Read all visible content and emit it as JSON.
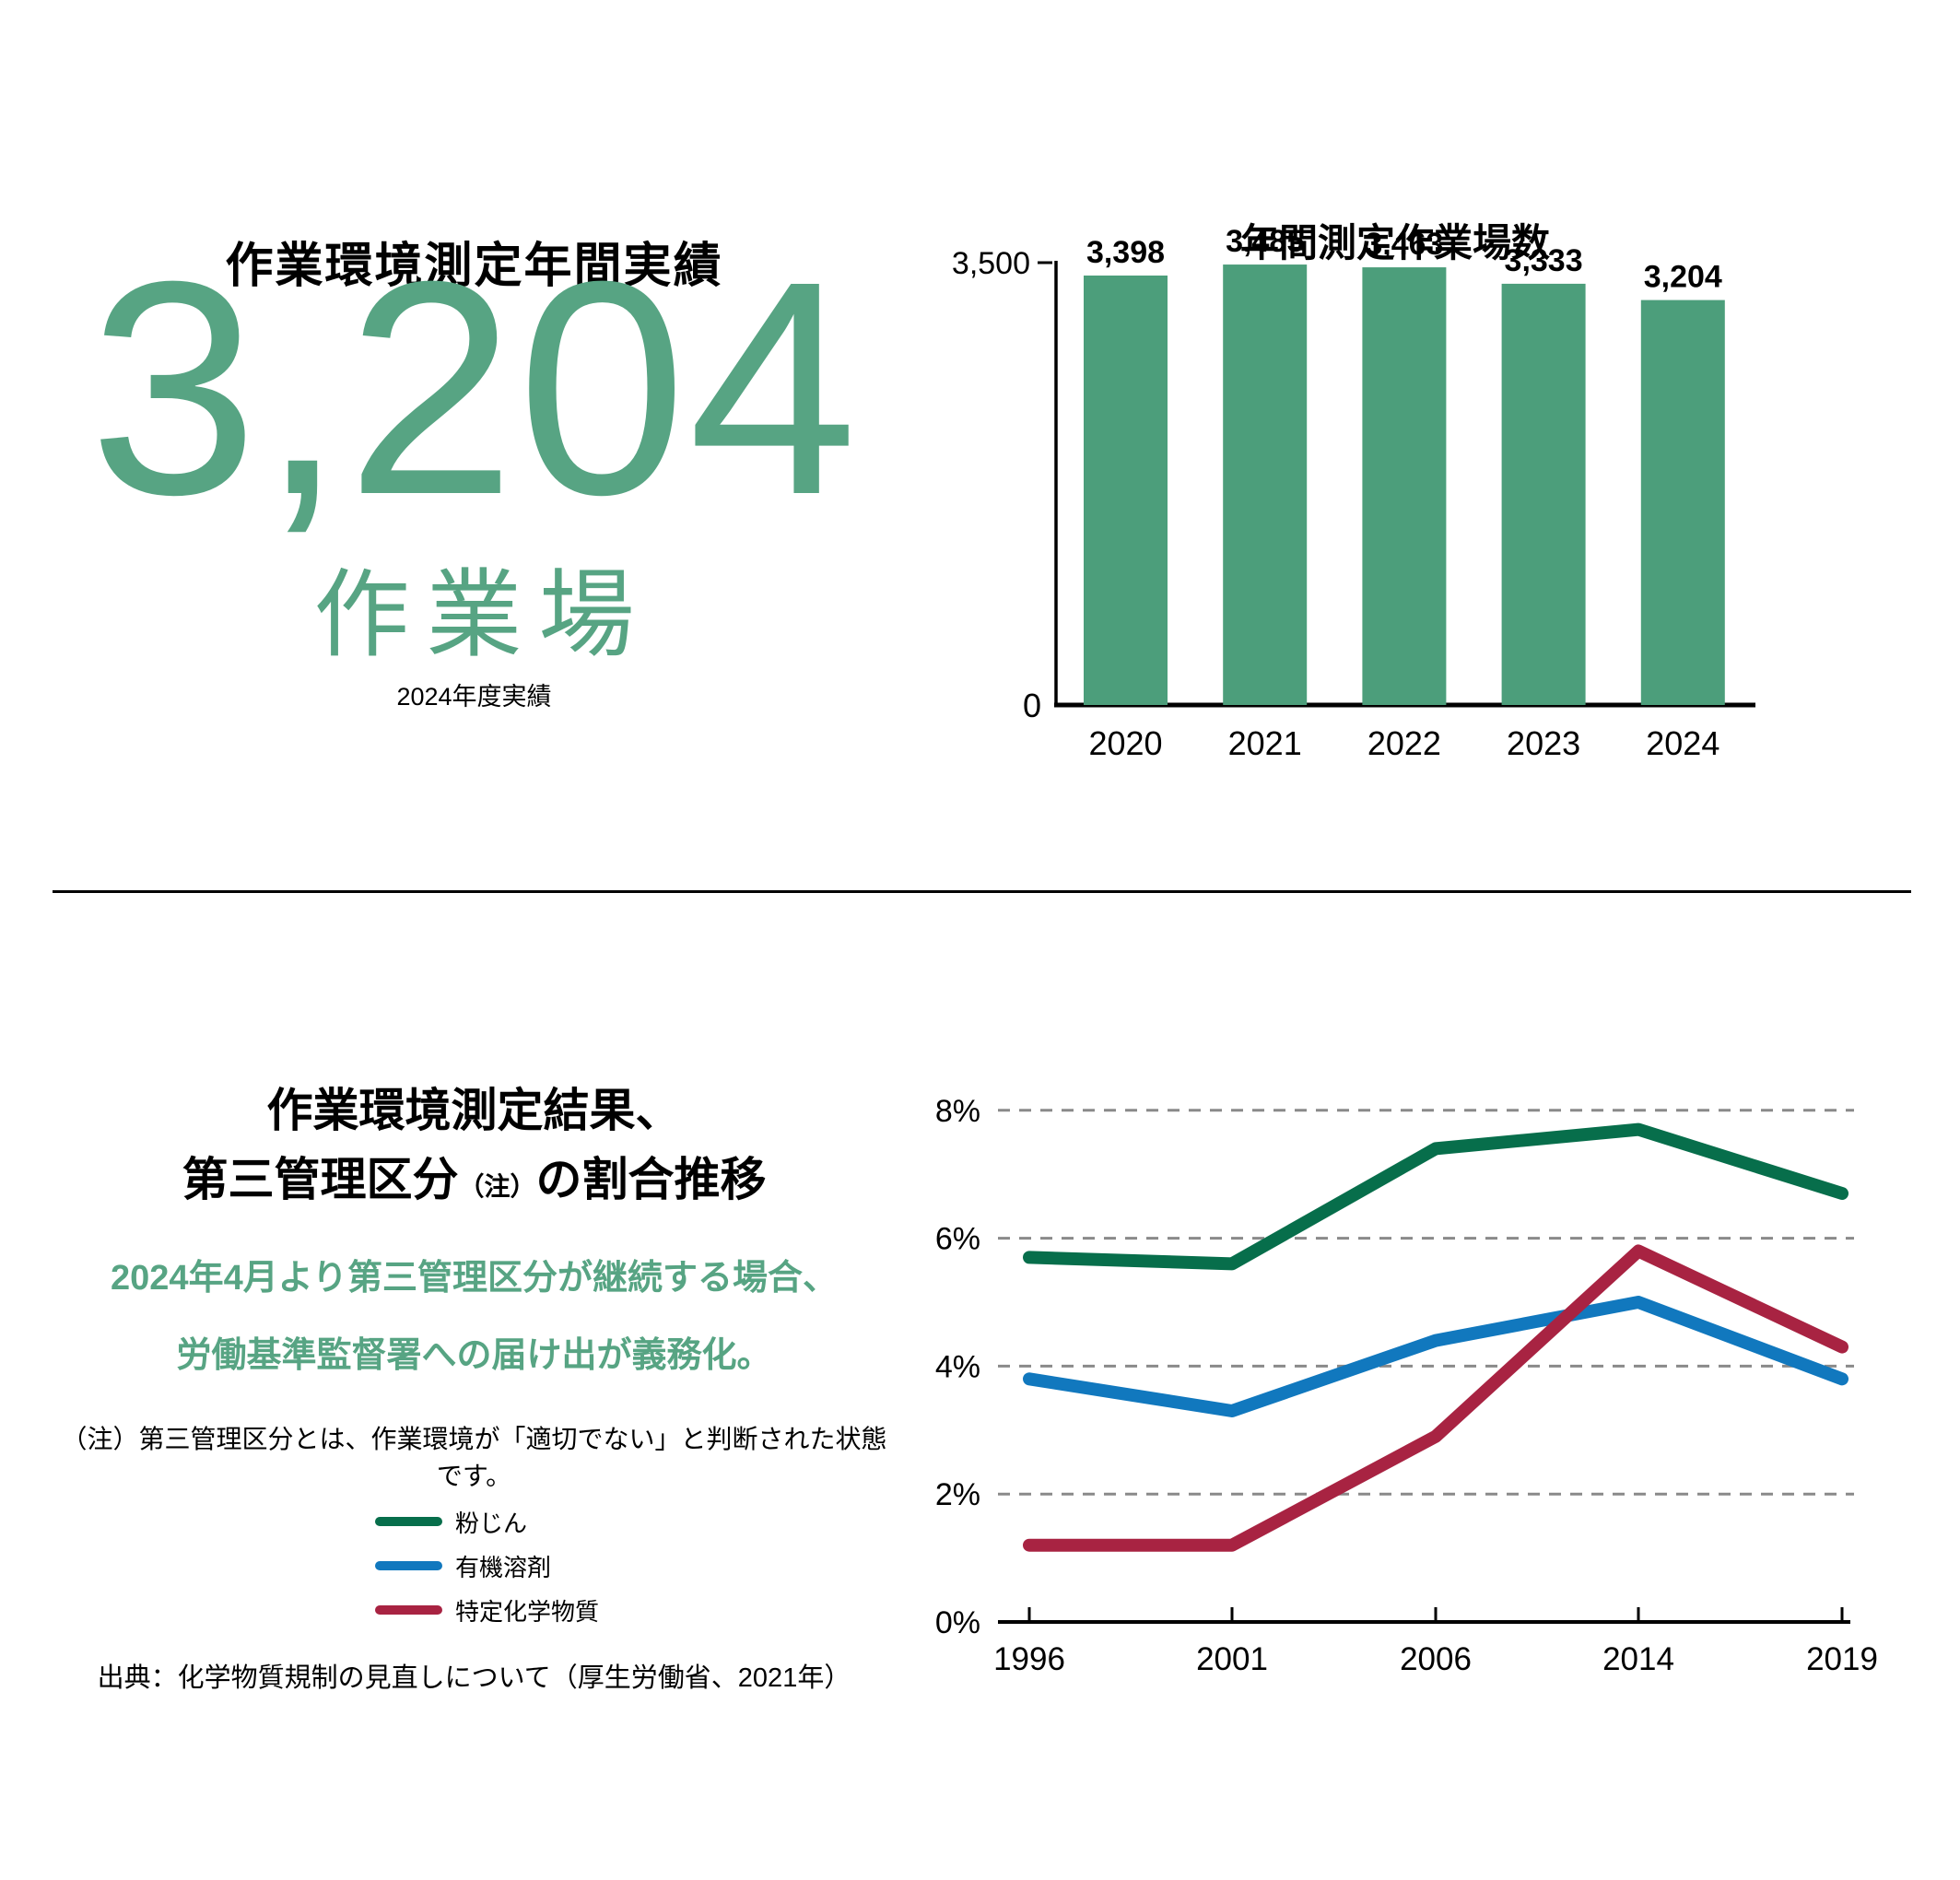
{
  "top_section": {
    "heading": "作業環境測定年間実績",
    "metric": {
      "value": "3,204",
      "unit": "作業場",
      "caption": "2024年度実績",
      "color": "#57A483"
    }
  },
  "bottom_section": {
    "title_line1": "作業環境測定結果、",
    "title_line2_before_note": "第三管理区分",
    "title_note_inline": "（注）",
    "title_line2_after_note": "の割合推移",
    "subtitle_line1": "2024年4月より第三管理区分が継続する場合、",
    "subtitle_line2": "労働基準監督署への届け出が義務化。",
    "subtitle_color": "#57A483",
    "note": "（注）第三管理区分とは、作業環境が「適切でない」と判断された状態です。",
    "source": "出典：化学物質規制の見直しについて（厚生労働省、2021年）"
  },
  "chart_data": [
    {
      "id": "annual-workplaces-bar",
      "type": "bar",
      "title": "年間測定作業場数",
      "categories": [
        "2020",
        "2021",
        "2022",
        "2023",
        "2024"
      ],
      "values": [
        3398,
        3485,
        3463,
        3333,
        3204
      ],
      "value_labels": [
        "3,398",
        "3,485",
        "3,463",
        "3,333",
        "3,204"
      ],
      "ylim": [
        0,
        3500
      ],
      "yticks": [
        {
          "value": 3500,
          "label": "3,500"
        },
        {
          "value": 0,
          "label": "0"
        }
      ],
      "xlabel": "",
      "ylabel": "",
      "grid": false,
      "legend": "none",
      "bar_color": "#4C9E7B",
      "axis_color": "#000000"
    },
    {
      "id": "third-classification-line",
      "type": "line",
      "title": "",
      "categories": [
        "1996",
        "2001",
        "2006",
        "2014",
        "2019"
      ],
      "series": [
        {
          "name": "粉じん",
          "color": "#076E4B",
          "values": [
            5.7,
            5.6,
            7.4,
            7.7,
            6.7
          ]
        },
        {
          "name": "有機溶剤",
          "color": "#1178BE",
          "values": [
            3.8,
            3.3,
            4.4,
            5.0,
            3.8
          ]
        },
        {
          "name": "特定化学物質",
          "color": "#A82342",
          "values": [
            1.2,
            1.2,
            2.9,
            5.8,
            4.3
          ]
        }
      ],
      "draw_order": [
        1,
        2,
        0
      ],
      "unit": "%",
      "ylim": [
        0,
        8
      ],
      "yticks": [
        {
          "value": 0,
          "label": "0%"
        },
        {
          "value": 2,
          "label": "2%"
        },
        {
          "value": 4,
          "label": "4%"
        },
        {
          "value": 6,
          "label": "6%"
        },
        {
          "value": 8,
          "label": "8%"
        }
      ],
      "grid": "dashed-horizontal",
      "grid_color": "#8a8a8a",
      "axis_color": "#000000",
      "legend_position": "left-panel"
    }
  ]
}
